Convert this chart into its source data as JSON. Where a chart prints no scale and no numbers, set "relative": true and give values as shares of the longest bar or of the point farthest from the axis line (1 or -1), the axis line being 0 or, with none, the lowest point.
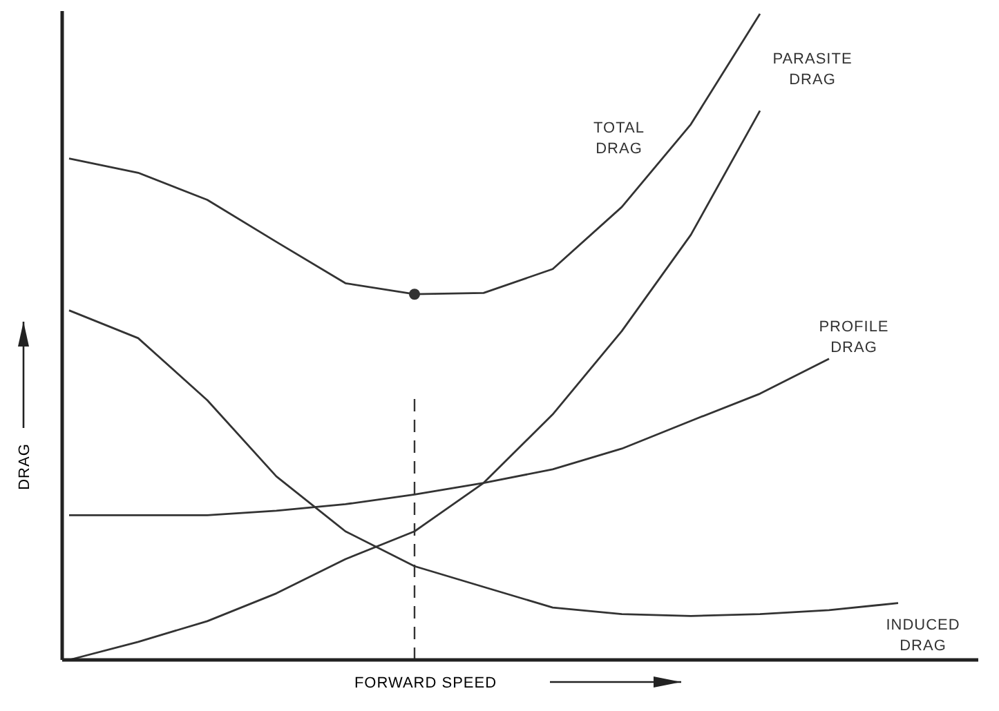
{
  "chart_data": {
    "type": "line",
    "relative": true,
    "xlabel": "FORWARD SPEED",
    "ylabel": "DRAG",
    "categories": [
      null,
      null,
      null,
      null,
      null,
      null,
      null,
      null,
      null,
      null,
      null,
      null,
      null
    ],
    "series": [
      {
        "name": "TOTAL DRAG",
        "color": "#333333",
        "values": [
          0.776,
          0.754,
          0.712,
          0.647,
          0.583,
          0.566,
          0.568,
          0.605,
          0.701,
          0.829,
          1.0,
          null,
          null
        ]
      },
      {
        "name": "PARASITE DRAG",
        "color": "#333333",
        "values": [
          0,
          0.028,
          0.06,
          0.103,
          0.156,
          0.199,
          0.274,
          0.38,
          0.509,
          0.658,
          0.85,
          null,
          null
        ]
      },
      {
        "name": "PROFILE DRAG",
        "color": "#333333",
        "values": [
          0.224,
          0.224,
          0.224,
          0.231,
          0.241,
          0.256,
          0.274,
          0.295,
          0.327,
          0.37,
          0.412,
          0.466,
          null
        ]
      },
      {
        "name": "INDUCED DRAG",
        "color": "#333333",
        "values": [
          0.541,
          0.498,
          0.402,
          0.284,
          0.199,
          0.145,
          0.113,
          0.081,
          0.071,
          0.068,
          0.071,
          0.077,
          0.088
        ]
      }
    ],
    "legend": false,
    "line_style": "solid"
  }
}
